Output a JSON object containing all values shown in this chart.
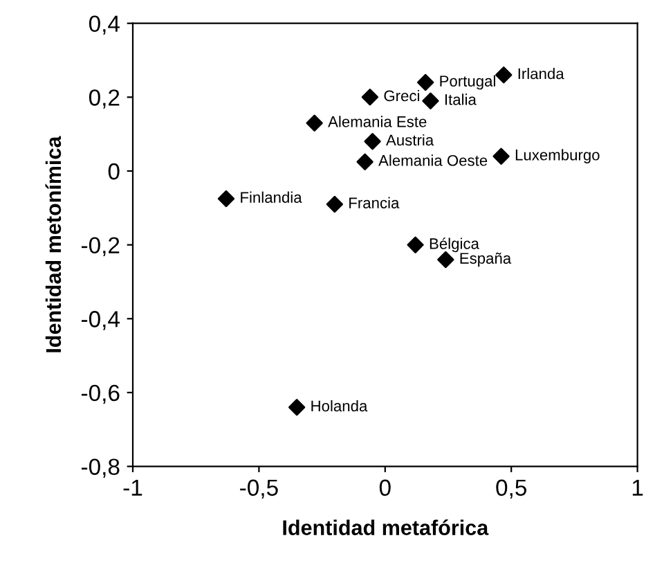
{
  "chart_data": {
    "type": "scatter",
    "xlabel": "Identidad metafórica",
    "ylabel": "Identidad metonímica",
    "x": [
      0.47,
      0.16,
      -0.06,
      0.18,
      -0.28,
      -0.05,
      -0.08,
      0.46,
      -0.63,
      -0.2,
      0.12,
      0.24,
      -0.35
    ],
    "series": [
      {
        "color": "#000000",
        "values": [
          0.26,
          0.24,
          0.2,
          0.19,
          0.13,
          0.08,
          0.025,
          0.04,
          -0.075,
          -0.09,
          -0.2,
          -0.24,
          -0.64
        ]
      }
    ],
    "annotations": [
      {
        "text": "Irlanda",
        "x": 0.47,
        "y": 0.26
      },
      {
        "text": "Portugal",
        "x": 0.16,
        "y": 0.24
      },
      {
        "text": "Greci",
        "x": -0.06,
        "y": 0.2
      },
      {
        "text": "Italia",
        "x": 0.18,
        "y": 0.19
      },
      {
        "text": "Alemania Este",
        "x": -0.28,
        "y": 0.13
      },
      {
        "text": "Austria",
        "x": -0.05,
        "y": 0.08
      },
      {
        "text": "Alemania Oeste",
        "x": -0.08,
        "y": 0.025
      },
      {
        "text": "Luxemburgo",
        "x": 0.46,
        "y": 0.04
      },
      {
        "text": "Finlandia",
        "x": -0.63,
        "y": -0.075
      },
      {
        "text": "Francia",
        "x": -0.2,
        "y": -0.09
      },
      {
        "text": "Bélgica",
        "x": 0.12,
        "y": -0.2
      },
      {
        "text": "España",
        "x": 0.24,
        "y": -0.24
      },
      {
        "text": "Holanda",
        "x": -0.35,
        "y": -0.64
      }
    ],
    "xlim": [
      -1,
      1
    ],
    "xticks": [
      -1,
      {
        "value": -0.5,
        "label": "-0,5"
      },
      0,
      {
        "value": 0.5,
        "label": "0,5"
      },
      1
    ],
    "ylim": [
      -0.8,
      0.4
    ],
    "yticks": [
      {
        "value": -0.8,
        "label": "-0,8"
      },
      {
        "value": -0.6,
        "label": "-0,6"
      },
      {
        "value": -0.4,
        "label": "-0,4"
      },
      {
        "value": -0.2,
        "label": "-0,2"
      },
      0,
      {
        "value": 0.2,
        "label": "0,2"
      },
      {
        "value": 0.4,
        "label": "0,4"
      }
    ],
    "marker": "diamond",
    "grid": false,
    "legend": false
  }
}
